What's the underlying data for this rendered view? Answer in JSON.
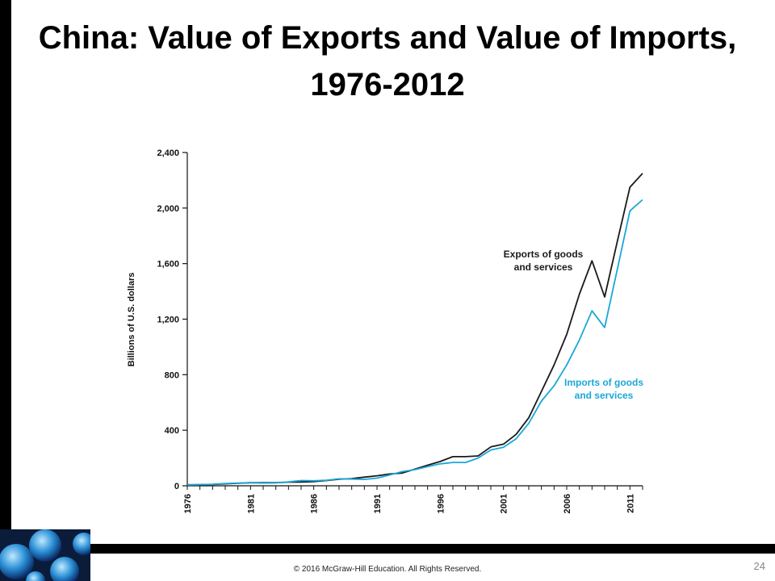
{
  "slide": {
    "title": "China: Value of Exports and Value of Imports, 1976-2012",
    "copyright": "© 2016 McGraw-Hill Education. All Rights Reserved.",
    "page_number": "24"
  },
  "colors": {
    "exports": "#1a1a1a",
    "imports": "#1aa7d8",
    "frame": "#000000"
  },
  "chart_data": {
    "type": "line",
    "title": "",
    "xlabel": "",
    "ylabel": "Billions of U.S. dollars",
    "xlim": [
      1976,
      2012
    ],
    "ylim": [
      0,
      2400
    ],
    "x_ticks": [
      1976,
      1981,
      1986,
      1991,
      1996,
      2001,
      2006,
      2011
    ],
    "y_ticks": [
      0,
      400,
      800,
      1200,
      1600,
      2000,
      2400
    ],
    "y_tick_labels": [
      "0",
      "400",
      "800",
      "1,200",
      "1,600",
      "2,000",
      "2,400"
    ],
    "grid": false,
    "legend": "inline annotations",
    "x": [
      1976,
      1977,
      1978,
      1979,
      1980,
      1981,
      1982,
      1983,
      1984,
      1985,
      1986,
      1987,
      1988,
      1989,
      1990,
      1991,
      1992,
      1993,
      1994,
      1995,
      1996,
      1997,
      1998,
      1999,
      2000,
      2001,
      2002,
      2003,
      2004,
      2005,
      2006,
      2007,
      2008,
      2009,
      2010,
      2011,
      2012
    ],
    "series": [
      {
        "name": "Exports of goods and services",
        "annotation": [
          "Exports of goods",
          "and services"
        ],
        "values": [
          7,
          8,
          10,
          14,
          18,
          22,
          22,
          22,
          26,
          27,
          30,
          38,
          47,
          52,
          62,
          72,
          85,
          92,
          120,
          148,
          175,
          210,
          210,
          215,
          280,
          300,
          370,
          490,
          680,
          870,
          1090,
          1380,
          1620,
          1360,
          1760,
          2150,
          2250
        ]
      },
      {
        "name": "Imports of goods and services",
        "annotation": [
          "Imports of goods",
          "and services"
        ],
        "values": [
          6,
          8,
          11,
          16,
          20,
          22,
          20,
          21,
          28,
          38,
          36,
          40,
          50,
          48,
          46,
          55,
          78,
          102,
          116,
          138,
          158,
          168,
          168,
          200,
          258,
          278,
          338,
          450,
          610,
          720,
          870,
          1050,
          1260,
          1140,
          1560,
          1980,
          2060
        ]
      }
    ]
  }
}
